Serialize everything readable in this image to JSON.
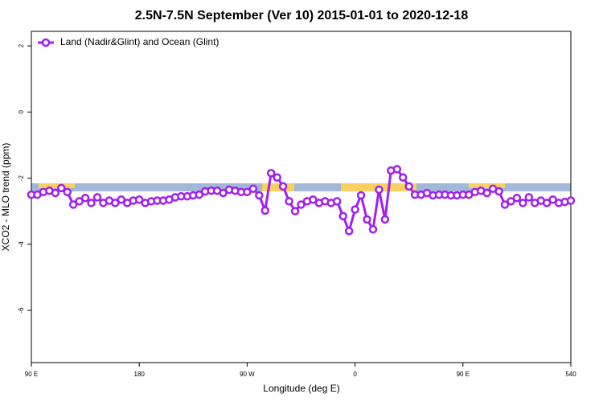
{
  "chart_data": {
    "type": "line",
    "title": "2.5N-7.5N September (Ver 10)   2015-01-01 to 2020-12-18",
    "xlabel": "Longitude (deg E)",
    "ylabel": "XCO2 - MLO trend (ppm)",
    "x": [
      90,
      95,
      100,
      105,
      110,
      115,
      120,
      125,
      130,
      135,
      140,
      145,
      150,
      155,
      160,
      165,
      170,
      175,
      180,
      185,
      190,
      195,
      200,
      205,
      210,
      215,
      220,
      225,
      230,
      235,
      240,
      245,
      250,
      255,
      260,
      265,
      270,
      275,
      280,
      285,
      290,
      295,
      300,
      305,
      310,
      315,
      320,
      325,
      330,
      335,
      340,
      345,
      350,
      355,
      360,
      365,
      370,
      375,
      380,
      385,
      390,
      395,
      400,
      405,
      410,
      415,
      420,
      425,
      430,
      435,
      440,
      445,
      450,
      455,
      460,
      465,
      470,
      475,
      480,
      485,
      490,
      495,
      500,
      505,
      510,
      515,
      520,
      525,
      530,
      535,
      540
    ],
    "series": [
      {
        "name": "Land (Nadir&Glint) and Ocean (Glint)",
        "color": "#a020f0",
        "values": [
          -2.5,
          -2.5,
          -2.42,
          -2.38,
          -2.45,
          -2.3,
          -2.42,
          -2.8,
          -2.7,
          -2.6,
          -2.75,
          -2.58,
          -2.75,
          -2.68,
          -2.75,
          -2.65,
          -2.75,
          -2.68,
          -2.65,
          -2.75,
          -2.7,
          -2.68,
          -2.68,
          -2.65,
          -2.58,
          -2.55,
          -2.55,
          -2.52,
          -2.5,
          -2.4,
          -2.38,
          -2.38,
          -2.45,
          -2.35,
          -2.38,
          -2.42,
          -2.42,
          -2.32,
          -2.52,
          -2.98,
          -1.85,
          -1.98,
          -2.25,
          -2.7,
          -3.0,
          -2.8,
          -2.7,
          -2.65,
          -2.75,
          -2.7,
          -2.75,
          -2.7,
          -3.15,
          -3.6,
          -2.95,
          -2.52,
          -3.25,
          -3.55,
          -2.35,
          -3.25,
          -1.77,
          -1.73,
          -1.98,
          -2.25,
          -2.5,
          -2.5,
          -2.45,
          -2.52,
          -2.5,
          -2.5,
          -2.52,
          -2.52,
          -2.5,
          -2.5,
          -2.42,
          -2.38,
          -2.45,
          -2.32,
          -2.4,
          -2.8,
          -2.7,
          -2.6,
          -2.75,
          -2.58,
          -2.75,
          -2.68,
          -2.75,
          -2.65,
          -2.75,
          -2.72,
          -2.68
        ]
      }
    ],
    "xlim": [
      90,
      540
    ],
    "xticks": [
      {
        "value": 90,
        "label": "90 E"
      },
      180,
      {
        "value": 270,
        "label": "90 W"
      },
      {
        "value": 360,
        "label": "0"
      },
      {
        "value": 450,
        "label": "90 E"
      },
      540
    ],
    "ylim": [
      -7.58,
      2.44
    ],
    "yticks": [
      2,
      0,
      -2,
      -4,
      -6
    ],
    "legend": "top-left",
    "grid": false
  }
}
